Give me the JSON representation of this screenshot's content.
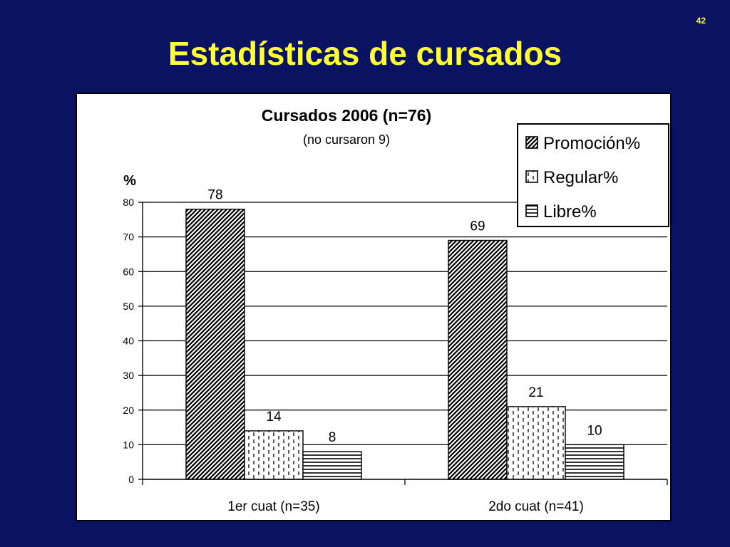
{
  "slide": {
    "number": "42",
    "title": "Estadísticas de cursados"
  },
  "chart_data": {
    "type": "bar",
    "title": "Cursados 2006 (n=76)",
    "subtitle": "(no cursaron 9)",
    "ylabel": "%",
    "xlabel": "",
    "ylim": [
      0,
      80
    ],
    "yticks": [
      0,
      10,
      20,
      30,
      40,
      50,
      60,
      70,
      80
    ],
    "grid": true,
    "legend_position": "top-right",
    "categories": [
      "1er cuat (n=35)",
      "2do cuat (n=41)"
    ],
    "series": [
      {
        "name": "Promoción%",
        "values": [
          78,
          69
        ],
        "pattern": "diagonal"
      },
      {
        "name": "Regular%",
        "values": [
          14,
          21
        ],
        "pattern": "dashed-vertical"
      },
      {
        "name": "Libre%",
        "values": [
          8,
          10
        ],
        "pattern": "horizontal"
      }
    ],
    "data_labels": true
  },
  "colors": {
    "background": "#0a1262",
    "title": "#ffff33",
    "panel": "#ffffff",
    "ink": "#000000"
  }
}
